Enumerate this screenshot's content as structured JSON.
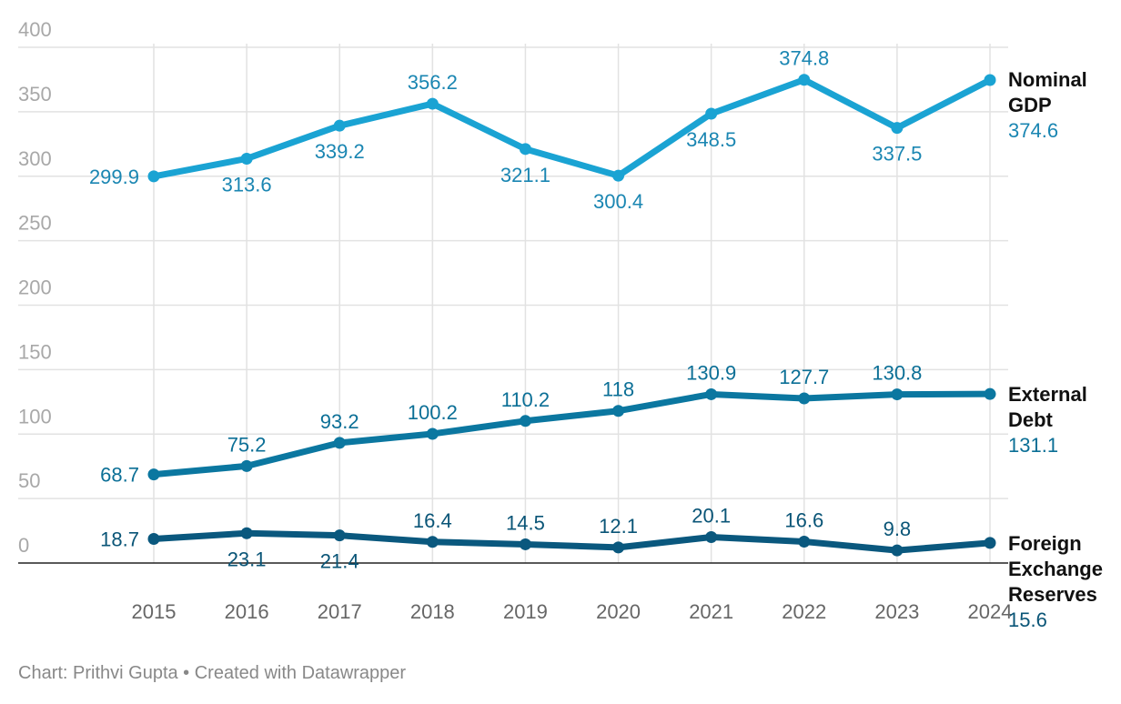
{
  "chart_data": {
    "type": "line",
    "categories": [
      "2015",
      "2016",
      "2017",
      "2018",
      "2019",
      "2020",
      "2021",
      "2022",
      "2023",
      "2024"
    ],
    "series": [
      {
        "name": "Nominal GDP",
        "color": "#1aa3d3",
        "label_color": "#1a86b2",
        "values": [
          299.9,
          313.6,
          339.2,
          356.2,
          321.1,
          300.4,
          348.5,
          374.8,
          337.5,
          374.6
        ]
      },
      {
        "name": "External Debt",
        "color": "#0b77a0",
        "label_color": "#0b6f96",
        "values": [
          68.7,
          75.2,
          93.2,
          100.2,
          110.2,
          118,
          130.9,
          127.7,
          130.8,
          131.1
        ]
      },
      {
        "name": "Foreign Exchange Reserves",
        "color": "#0a587e",
        "label_color": "#0a5577",
        "values": [
          18.7,
          23.1,
          21.4,
          16.4,
          14.5,
          12.1,
          20.1,
          16.6,
          9.8,
          15.6
        ]
      }
    ],
    "ylim": [
      0,
      400
    ],
    "yticks": [
      0,
      50,
      100,
      150,
      200,
      250,
      300,
      350,
      400
    ],
    "grid": true,
    "footer": "Chart: Prithvi Gupta • Created with Datawrapper"
  }
}
